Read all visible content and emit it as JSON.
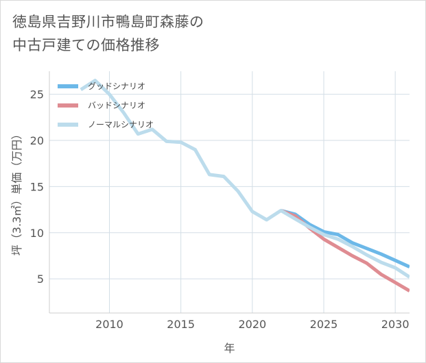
{
  "title": {
    "line1": "徳島県吉野川市鴨島町森藤の",
    "line2": "中古戸建ての価格推移"
  },
  "chart_data": {
    "type": "line",
    "title": "徳島県吉野川市鴨島町森藤の中古戸建ての価格推移",
    "xlabel": "年",
    "ylabel": "坪（3.3㎡）単価（万円）",
    "xlim": [
      2005.8,
      2031
    ],
    "ylim": [
      1.3,
      27.5
    ],
    "xticks": [
      2010,
      2015,
      2020,
      2025,
      2030
    ],
    "yticks": [
      5,
      10,
      15,
      20,
      25
    ],
    "grid": true,
    "legend_position": "top-left",
    "series": [
      {
        "name": "グッドシナリオ",
        "color": "#6cb8e8",
        "x": [
          2022,
          2023,
          2024,
          2025,
          2026,
          2027,
          2028,
          2029,
          2030,
          2031
        ],
        "y": [
          12.4,
          12.0,
          10.9,
          10.1,
          9.8,
          8.9,
          8.3,
          7.7,
          7.0,
          6.3
        ]
      },
      {
        "name": "バッドシナリオ",
        "color": "#df8c92",
        "x": [
          2022,
          2023,
          2024,
          2025,
          2026,
          2027,
          2028,
          2029,
          2030,
          2031
        ],
        "y": [
          12.4,
          11.8,
          10.5,
          9.3,
          8.4,
          7.5,
          6.7,
          5.5,
          4.6,
          3.7
        ]
      },
      {
        "name": "ノーマルシナリオ",
        "color": "#bcdcec",
        "x": [
          2008,
          2009,
          2010,
          2011,
          2012,
          2013,
          2014,
          2015,
          2016,
          2017,
          2018,
          2019,
          2020,
          2021,
          2022,
          2023,
          2024,
          2025,
          2026,
          2027,
          2028,
          2029,
          2030,
          2031
        ],
        "y": [
          25.5,
          26.5,
          25.0,
          23.0,
          20.7,
          21.2,
          19.9,
          19.8,
          19.0,
          16.3,
          16.1,
          14.5,
          12.3,
          11.4,
          12.4,
          11.5,
          10.6,
          9.8,
          9.3,
          8.5,
          7.6,
          6.8,
          6.2,
          5.2
        ]
      }
    ]
  }
}
